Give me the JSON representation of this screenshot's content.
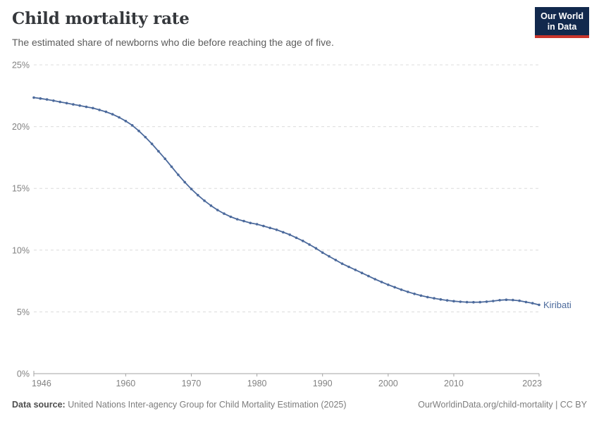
{
  "header": {
    "title": "Child mortality rate",
    "subtitle": "The estimated share of newborns who die before reaching the age of five.",
    "logo": {
      "line1": "Our World",
      "line2": "in Data",
      "bg_color": "#12294d",
      "accent_color": "#c9352c"
    }
  },
  "chart_data": {
    "type": "line",
    "title": "Child mortality rate",
    "entity": "Kiribati",
    "unit": "%",
    "line_color": "#4C6A9C",
    "grid": "dashed-horizontal",
    "legend": "end-of-line-label",
    "xlim": [
      1946,
      2023
    ],
    "ylim": [
      0,
      25
    ],
    "xticks": [
      1946,
      1960,
      1970,
      1980,
      1990,
      2000,
      2010,
      2023
    ],
    "yticks": [
      0,
      5,
      10,
      15,
      20,
      25
    ],
    "ytick_labels": [
      "0%",
      "5%",
      "10%",
      "15%",
      "20%",
      "25%"
    ],
    "years": [
      1946,
      1947,
      1948,
      1949,
      1950,
      1951,
      1952,
      1953,
      1954,
      1955,
      1956,
      1957,
      1958,
      1959,
      1960,
      1961,
      1962,
      1963,
      1964,
      1965,
      1966,
      1967,
      1968,
      1969,
      1970,
      1971,
      1972,
      1973,
      1974,
      1975,
      1976,
      1977,
      1978,
      1979,
      1980,
      1981,
      1982,
      1983,
      1984,
      1985,
      1986,
      1987,
      1988,
      1989,
      1990,
      1991,
      1992,
      1993,
      1994,
      1995,
      1996,
      1997,
      1998,
      1999,
      2000,
      2001,
      2002,
      2003,
      2004,
      2005,
      2006,
      2007,
      2008,
      2009,
      2010,
      2011,
      2012,
      2013,
      2014,
      2015,
      2016,
      2017,
      2018,
      2019,
      2020,
      2021,
      2022,
      2023
    ],
    "series": [
      {
        "name": "Kiribati",
        "values": [
          22.35,
          22.28,
          22.2,
          22.1,
          22.0,
          21.9,
          21.8,
          21.7,
          21.6,
          21.5,
          21.35,
          21.2,
          21.0,
          20.75,
          20.45,
          20.1,
          19.65,
          19.15,
          18.6,
          18.0,
          17.4,
          16.75,
          16.1,
          15.5,
          14.95,
          14.45,
          14.0,
          13.6,
          13.25,
          12.95,
          12.7,
          12.5,
          12.35,
          12.2,
          12.1,
          11.95,
          11.8,
          11.65,
          11.45,
          11.25,
          11.0,
          10.75,
          10.45,
          10.15,
          9.8,
          9.5,
          9.2,
          8.9,
          8.65,
          8.4,
          8.15,
          7.9,
          7.65,
          7.42,
          7.2,
          7.0,
          6.8,
          6.62,
          6.46,
          6.32,
          6.2,
          6.1,
          6.01,
          5.93,
          5.87,
          5.82,
          5.79,
          5.78,
          5.79,
          5.83,
          5.88,
          5.95,
          5.98,
          5.96,
          5.9,
          5.8,
          5.7,
          5.57
        ]
      }
    ]
  },
  "footer": {
    "source_label": "Data source:",
    "source_text": "United Nations Inter-agency Group for Child Mortality Estimation (2025)",
    "link_text": "OurWorldinData.org/child-mortality | CC BY"
  }
}
